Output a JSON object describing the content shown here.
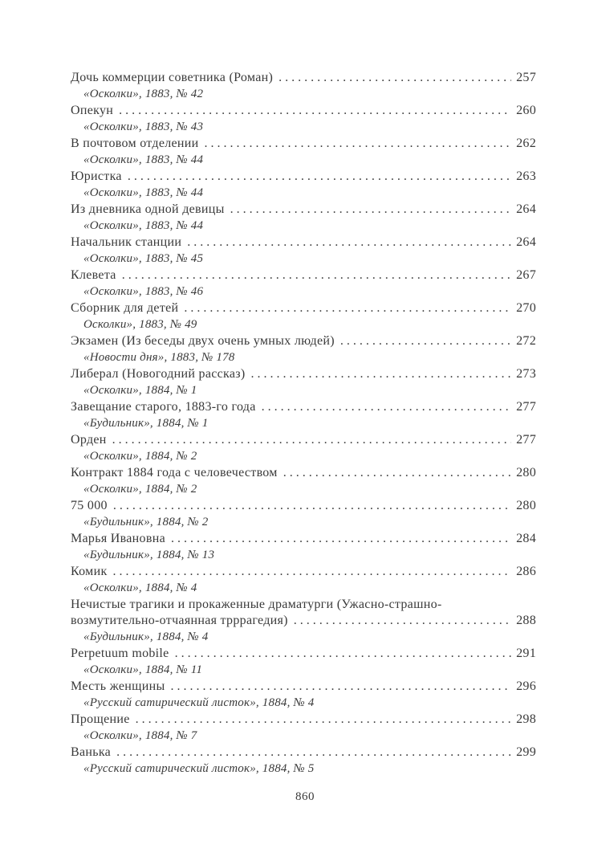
{
  "page": {
    "background_color": "#ffffff",
    "text_color": "#3a3a3a"
  },
  "toc": {
    "entries": [
      {
        "title_lines": [
          "Дочь коммерции советника (Роман)"
        ],
        "page": "257",
        "source": "«Осколки», 1883, № 42"
      },
      {
        "title_lines": [
          "Опекун"
        ],
        "page": "260",
        "source": "«Осколки», 1883, № 43"
      },
      {
        "title_lines": [
          "В почтовом отделении"
        ],
        "page": "262",
        "source": "«Осколки», 1883, № 44"
      },
      {
        "title_lines": [
          "Юристка"
        ],
        "page": "263",
        "source": "«Осколки», 1883, № 44"
      },
      {
        "title_lines": [
          "Из дневника одной девицы"
        ],
        "page": "264",
        "source": "«Осколки», 1883, № 44"
      },
      {
        "title_lines": [
          "Начальник станции"
        ],
        "page": "264",
        "source": "«Осколки», 1883, № 45"
      },
      {
        "title_lines": [
          "Клевета"
        ],
        "page": "267",
        "source": "«Осколки», 1883, № 46"
      },
      {
        "title_lines": [
          "Сборник для детей"
        ],
        "page": "270",
        "source": "Осколки», 1883, № 49"
      },
      {
        "title_lines": [
          "Экзамен (Из беседы двух очень умных людей)"
        ],
        "page": "272",
        "source": "«Новости дня», 1883, № 178"
      },
      {
        "title_lines": [
          "Либерал (Новогодний рассказ)"
        ],
        "page": "273",
        "source": "«Осколки», 1884, № 1"
      },
      {
        "title_lines": [
          "Завещание старого, 1883-го года"
        ],
        "page": "277",
        "source": "«Будильник», 1884, № 1"
      },
      {
        "title_lines": [
          "Орден"
        ],
        "page": "277",
        "source": "«Осколки», 1884, № 2"
      },
      {
        "title_lines": [
          "Контракт 1884 года с человечеством"
        ],
        "page": "280",
        "source": "«Осколки», 1884, № 2"
      },
      {
        "title_lines": [
          "75 000"
        ],
        "page": "280",
        "source": "«Будильник», 1884, № 2"
      },
      {
        "title_lines": [
          "Марья Ивановна"
        ],
        "page": "284",
        "source": "«Будильник», 1884, № 13"
      },
      {
        "title_lines": [
          "Комик"
        ],
        "page": "286",
        "source": "«Осколки», 1884, № 4"
      },
      {
        "title_lines": [
          "Нечистые трагики и прокаженные драматурги (Ужасно-страшно-",
          "возмутительно-отчаянная трррагедия)"
        ],
        "page": "288",
        "source": "«Будильник», 1884, № 4"
      },
      {
        "title_lines": [
          "Perpetuum mobile"
        ],
        "page": "291",
        "source": "«Осколки», 1884, № 11"
      },
      {
        "title_lines": [
          "Месть женщины"
        ],
        "page": "296",
        "source": "«Русский сатирический листок», 1884, № 4"
      },
      {
        "title_lines": [
          "Прощение"
        ],
        "page": "298",
        "source": "«Осколки», 1884, № 7"
      },
      {
        "title_lines": [
          "Ванька"
        ],
        "page": "299",
        "source": "«Русский сатирический листок», 1884, № 5"
      }
    ]
  },
  "footer": {
    "folio": "860"
  }
}
